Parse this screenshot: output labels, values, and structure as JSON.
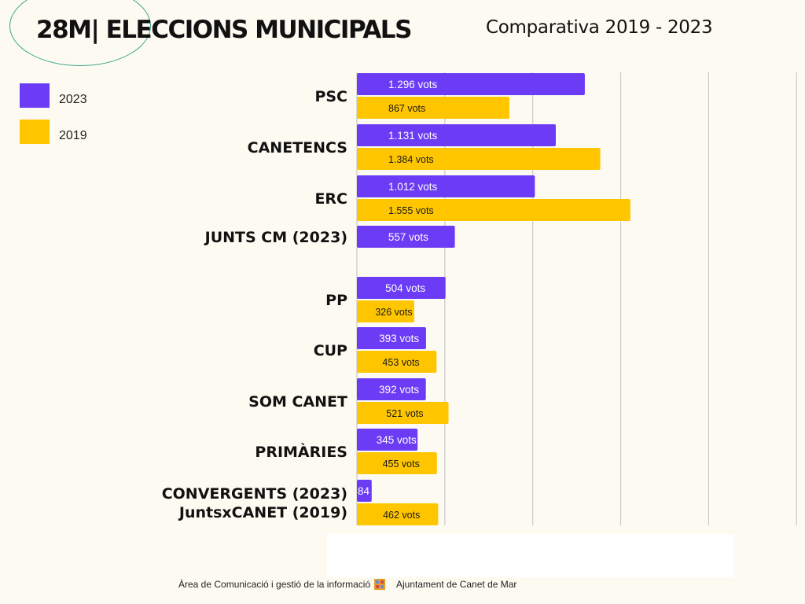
{
  "header": {
    "title": "28M| ELECCIONS MUNICIPALS",
    "subtitle": "Comparativa 2019 - 2023"
  },
  "legend": [
    {
      "label": "2023",
      "color": "#6c3bf5"
    },
    {
      "label": "2019",
      "color": "#ffc600"
    }
  ],
  "footer": {
    "left_text": "Àrea de Comunicació i gestió de la informació",
    "right_text": "Ajuntament de Canet de Mar",
    "logo_icon": "municipal-shield-icon"
  },
  "chart_data": {
    "type": "bar",
    "orientation": "horizontal",
    "grid": true,
    "xlim": [
      0,
      3000
    ],
    "categories": [
      [
        "PSC"
      ],
      [
        "CANETENCS"
      ],
      [
        "ERC"
      ],
      [
        "JUNTS CM (2023)"
      ],
      [
        "PP"
      ],
      [
        "CUP"
      ],
      [
        "SOM CANET"
      ],
      [
        "PRIMÀRIES"
      ],
      [
        "CONVERGENTS (2023)",
        "JuntsxCANET (2019)"
      ]
    ],
    "series": [
      {
        "name": "2023",
        "color": "#6c3bf5",
        "values": [
          1296,
          1131,
          1012,
          557,
          504,
          393,
          392,
          345,
          84
        ],
        "labels": [
          "1.296 vots",
          "1.131 vots",
          "1.012 vots",
          "557 vots",
          "504 vots",
          "393 vots",
          "392 vots",
          "345 vots",
          "84"
        ]
      },
      {
        "name": "2019",
        "color": "#ffc600",
        "values": [
          867,
          1384,
          1555,
          null,
          326,
          453,
          521,
          455,
          462
        ],
        "labels": [
          "867 vots",
          "1.384 vots",
          "1.555 vots",
          "",
          "326 vots",
          "453 vots",
          "521 vots",
          "455 vots",
          "462 vots"
        ]
      }
    ]
  }
}
